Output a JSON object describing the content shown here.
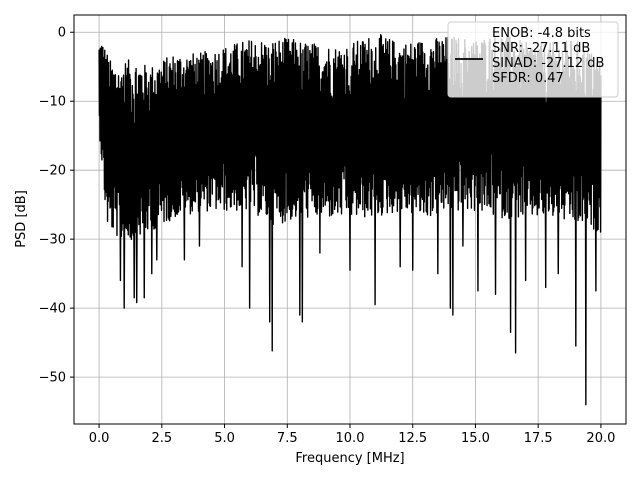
{
  "chart_data": {
    "type": "line",
    "title": "",
    "xlabel": "Frequency [MHz]",
    "ylabel": "PSD [dB]",
    "xlim": [
      -1.0,
      21.0
    ],
    "ylim": [
      -56.8,
      2.5
    ],
    "x_ticks": [
      0.0,
      2.5,
      5.0,
      7.5,
      10.0,
      12.5,
      15.0,
      17.5,
      20.0
    ],
    "x_tick_labels": [
      "0.0",
      "2.5",
      "5.0",
      "7.5",
      "10.0",
      "12.5",
      "15.0",
      "17.5",
      "20.0"
    ],
    "y_ticks": [
      0,
      -10,
      -20,
      -30,
      -40,
      -50
    ],
    "y_tick_labels": [
      "0",
      "−10",
      "−20",
      "−30",
      "−40",
      "−50"
    ],
    "grid": true,
    "legend_position": "top-right",
    "series": [
      {
        "name": "ENOB: -4.8 bits\nSNR: -27.11 dB\nSINAD: -27.12 dB\nSFDR: 0.47",
        "color": "#000000",
        "x_start": 0.0,
        "x_end": 20.0,
        "envelope_upper": [
          [
            0.0,
            -1.5
          ],
          [
            0.1,
            -0.8
          ],
          [
            0.5,
            -4.5
          ],
          [
            1.0,
            -4.0
          ],
          [
            1.5,
            -4.0
          ],
          [
            2.0,
            -5.0
          ],
          [
            2.5,
            -4.0
          ],
          [
            3.0,
            -3.0
          ],
          [
            4.0,
            -3.0
          ],
          [
            5.0,
            -2.0
          ],
          [
            6.0,
            -1.0
          ],
          [
            7.0,
            -1.0
          ],
          [
            7.5,
            -0.8
          ],
          [
            8.5,
            -1.5
          ],
          [
            9.5,
            -2.0
          ],
          [
            10.5,
            -1.0
          ],
          [
            11.0,
            0.0
          ],
          [
            12.0,
            -1.5
          ],
          [
            13.0,
            -1.0
          ],
          [
            14.0,
            -0.5
          ],
          [
            15.0,
            -1.0
          ],
          [
            16.0,
            0.0
          ],
          [
            17.0,
            -1.5
          ],
          [
            18.0,
            -1.5
          ],
          [
            19.0,
            -1.0
          ],
          [
            20.0,
            -4.0
          ]
        ],
        "envelope_lower": [
          [
            0.0,
            -14.0
          ],
          [
            0.3,
            -28.0
          ],
          [
            1.0,
            -31.0
          ],
          [
            2.0,
            -29.0
          ],
          [
            3.0,
            -27.0
          ],
          [
            4.0,
            -26.0
          ],
          [
            5.0,
            -26.0
          ],
          [
            6.0,
            -26.0
          ],
          [
            7.0,
            -28.0
          ],
          [
            8.0,
            -27.0
          ],
          [
            9.0,
            -27.0
          ],
          [
            10.0,
            -27.0
          ],
          [
            11.0,
            -27.0
          ],
          [
            12.0,
            -26.0
          ],
          [
            13.0,
            -27.0
          ],
          [
            14.0,
            -26.0
          ],
          [
            15.0,
            -26.0
          ],
          [
            16.0,
            -27.0
          ],
          [
            17.0,
            -27.0
          ],
          [
            18.0,
            -27.0
          ],
          [
            19.0,
            -28.0
          ],
          [
            20.0,
            -29.0
          ]
        ],
        "deep_dips": [
          [
            0.85,
            -36.0
          ],
          [
            1.0,
            -40.0
          ],
          [
            1.4,
            -38.5
          ],
          [
            1.5,
            -39.2
          ],
          [
            1.8,
            -38.5
          ],
          [
            2.1,
            -35.0
          ],
          [
            2.3,
            -33.0
          ],
          [
            3.4,
            -33.0
          ],
          [
            4.0,
            -31.0
          ],
          [
            5.7,
            -34.0
          ],
          [
            6.0,
            -40.0
          ],
          [
            6.8,
            -42.0
          ],
          [
            6.9,
            -46.2
          ],
          [
            8.0,
            -41.0
          ],
          [
            8.1,
            -42.0
          ],
          [
            8.8,
            -32.0
          ],
          [
            10.0,
            -34.5
          ],
          [
            11.0,
            -39.5
          ],
          [
            12.0,
            -34.0
          ],
          [
            12.5,
            -34.5
          ],
          [
            13.5,
            -35.0
          ],
          [
            14.0,
            -40.0
          ],
          [
            14.1,
            -41.0
          ],
          [
            14.5,
            -31.0
          ],
          [
            15.1,
            -37.5
          ],
          [
            15.8,
            -38.0
          ],
          [
            16.4,
            -43.5
          ],
          [
            16.6,
            -46.5
          ],
          [
            17.0,
            -36.0
          ],
          [
            17.8,
            -37.0
          ],
          [
            18.3,
            -35.0
          ],
          [
            19.0,
            -45.5
          ],
          [
            19.4,
            -54.0
          ],
          [
            19.8,
            -37.5
          ]
        ]
      }
    ]
  }
}
